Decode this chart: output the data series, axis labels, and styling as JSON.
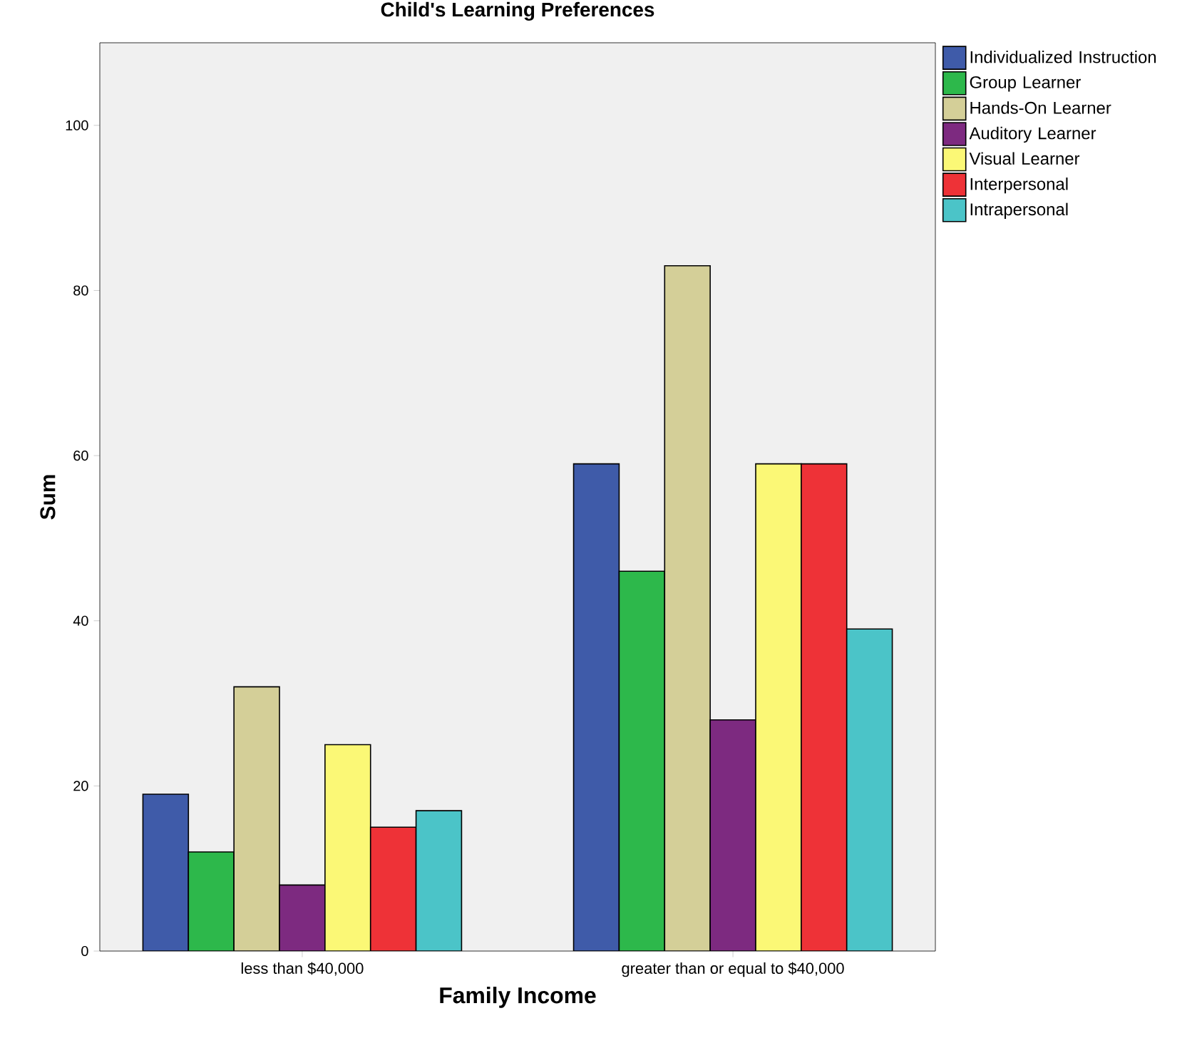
{
  "chart_data": {
    "type": "bar",
    "title": "Child's Learning Preferences",
    "xlabel": "Family Income",
    "ylabel": "Sum",
    "categories": [
      "less than $40,000",
      "greater than or equal to $40,000"
    ],
    "series": [
      {
        "name": "Individualized Instruction",
        "color": "#3f5ba9",
        "values": [
          19,
          59
        ]
      },
      {
        "name": "Group Learner",
        "color": "#2db84b",
        "values": [
          12,
          46
        ]
      },
      {
        "name": "Hands-On Learner",
        "color": "#d4cf98",
        "values": [
          32,
          83
        ]
      },
      {
        "name": "Auditory Learner",
        "color": "#7d2a80",
        "values": [
          8,
          28
        ]
      },
      {
        "name": "Visual Learner",
        "color": "#fbf876",
        "values": [
          25,
          59
        ]
      },
      {
        "name": "Interpersonal",
        "color": "#ee3237",
        "values": [
          15,
          59
        ]
      },
      {
        "name": "Intrapersonal",
        "color": "#4bc4c8",
        "values": [
          17,
          39
        ]
      }
    ],
    "ylim": [
      0,
      110
    ],
    "yticks": [
      0,
      20,
      40,
      60,
      80,
      100
    ],
    "legend": "top right",
    "grid": false
  }
}
